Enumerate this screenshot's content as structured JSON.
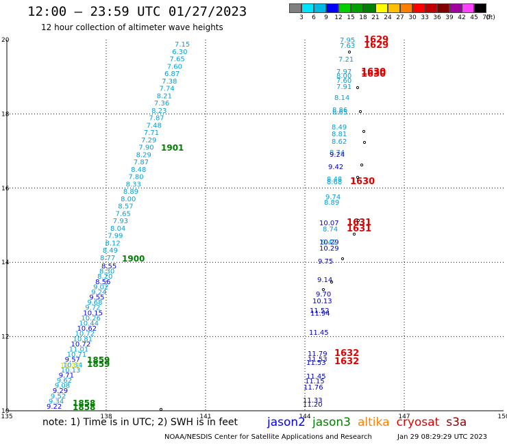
{
  "header": {
    "title": "12:00 – 23:59 UTC 01/27/2023",
    "subtitle": "12 hour collection of altimeter wave heights"
  },
  "color_scale": {
    "unit_label": "(ft)",
    "bins": [
      {
        "label": "3",
        "color": "#808080"
      },
      {
        "label": "6",
        "color": "#00e5ff"
      },
      {
        "label": "9",
        "color": "#00b8e6"
      },
      {
        "label": "12",
        "color": "#0000ff"
      },
      {
        "label": "15",
        "color": "#00d000"
      },
      {
        "label": "18",
        "color": "#00a000"
      },
      {
        "label": "21",
        "color": "#008000"
      },
      {
        "label": "24",
        "color": "#ffff00"
      },
      {
        "label": "27",
        "color": "#ffc000"
      },
      {
        "label": "30",
        "color": "#ff8000"
      },
      {
        "label": "33",
        "color": "#ff0000"
      },
      {
        "label": "36",
        "color": "#c00000"
      },
      {
        "label": "39",
        "color": "#800000"
      },
      {
        "label": "42",
        "color": "#a000a0"
      },
      {
        "label": "45",
        "color": "#ff40ff"
      },
      {
        "label": "70",
        "color": "#000000"
      }
    ]
  },
  "map": {
    "lon_ticks": [
      "135",
      "138",
      "141",
      "144",
      "147",
      "150"
    ],
    "lat_ticks": [
      "10",
      "12",
      "14",
      "16",
      "18",
      "20"
    ],
    "lon_range": [
      135,
      150
    ],
    "lat_range": [
      10,
      20
    ]
  },
  "tracks": {
    "jason3_diagonal": {
      "color": "#00a0d8",
      "values": [
        "7.15",
        "6.30",
        "7.65",
        "7.60",
        "6.87",
        "7.38",
        "7.74",
        "8.21",
        "7.36",
        "8.23",
        "7.87",
        "7.48",
        "7.71",
        "7.29",
        "7.90",
        "8.29",
        "7.87",
        "8.48",
        "7.80",
        "8.33",
        "8.89",
        "8.00",
        "8.57",
        "7.65",
        "7.93",
        "8.04",
        "7.99",
        "8.12",
        "8.49",
        "8.77"
      ],
      "lower_values": [
        "8.55",
        "8.30",
        "8.20",
        "8.56",
        "9.02",
        "9.24",
        "9.55",
        "9.68",
        "9.72",
        "10.15",
        "10.26",
        "10.44",
        "10.62",
        "10.72",
        "10.81",
        "10.72",
        "11.01",
        "10.71",
        "9.57",
        "10.34",
        "10.13",
        "9.71",
        "9.62",
        "9.08",
        "9.29",
        "9.52",
        "9.34",
        "9.22"
      ],
      "time_labels": [
        {
          "text": "1901",
          "color": "#008000"
        },
        {
          "text": "1900",
          "color": "#008000"
        },
        {
          "text": "1859",
          "color": "#008000"
        },
        {
          "text": "1859",
          "color": "#008000"
        },
        {
          "text": "1858",
          "color": "#008000"
        },
        {
          "text": "1858",
          "color": "#008000"
        }
      ],
      "yellow_value": "11.30"
    },
    "east_track": {
      "cyan_values": [
        "7.95",
        "7.63",
        "7.21",
        "7.97",
        "8.00",
        "7.60",
        "7.91",
        "8.14",
        "8.86",
        "8.65",
        "8.49",
        "8.81",
        "8.62",
        "8.74",
        "8.48",
        "8.68",
        "9.74",
        "8.89",
        "8.74",
        "9.42"
      ],
      "blue_values": [
        "9.24",
        "9.42",
        "10.07",
        "10.29",
        "10.29",
        "9.75",
        "9.14",
        "9.70",
        "10.13",
        "11.52",
        "11.94",
        "11.45",
        "11.79",
        "11.53",
        "11.53",
        "11.45",
        "11.15",
        "11.76",
        "11.33",
        "11.20"
      ],
      "red_labels": [
        "1629",
        "1629",
        "1630",
        "1630",
        "1630",
        "1631",
        "1631",
        "1632",
        "1632"
      ]
    }
  },
  "footer": {
    "note": "note:  1) Time is in UTC;  2) SWH is in feet",
    "sats": [
      {
        "name": "jason2",
        "color": "#0000ff"
      },
      {
        "name": "jason3",
        "color": "#008000"
      },
      {
        "name": "altika",
        "color": "#ff8000"
      },
      {
        "name": "cryosat",
        "color": "#e00000"
      },
      {
        "name": "s3a",
        "color": "#8b0000"
      }
    ],
    "credit": "NOAA/NESDIS Center for Satellite Applications and Research",
    "stamp": "Jan 29 08:29:29 UTC 2023"
  }
}
